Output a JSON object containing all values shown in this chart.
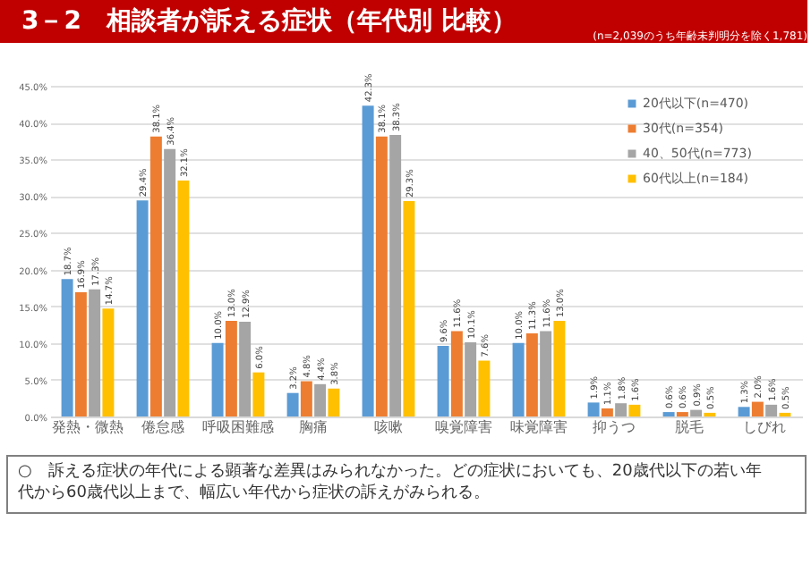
{
  "chart_data": {
    "type": "bar",
    "title": "3－2　相談者が訴える症状（年代別 比較）",
    "subtitle": "(n=2,039のうち年齢未判明分を除く1,781)",
    "categories": [
      "発熱・微熱",
      "倦怠感",
      "呼吸困難感",
      "胸痛",
      "咳嗽",
      "嗅覚障害",
      "味覚障害",
      "抑うつ",
      "脱毛",
      "しびれ"
    ],
    "series": [
      {
        "name": "20代以下(n=470)",
        "color": "#5b9bd5",
        "values": [
          18.7,
          29.4,
          10.0,
          3.2,
          42.3,
          9.6,
          10.0,
          1.9,
          0.6,
          1.3
        ],
        "value_labels": [
          "18.7%",
          "29.4%",
          "10.0%",
          "3.2%",
          "42.3%",
          "9.6%",
          "10.0%",
          "1.9%",
          "0.6%",
          "1.3%"
        ]
      },
      {
        "name": "30代(n=354)",
        "color": "#ed7d31",
        "values": [
          16.9,
          38.1,
          13.0,
          4.8,
          38.1,
          11.6,
          11.3,
          1.1,
          0.6,
          2.0
        ],
        "value_labels": [
          "16.9%",
          "38.1%",
          "13.0%",
          "4.8%",
          "38.1%",
          "11.6%",
          "11.3%",
          "1.1%",
          "0.6%",
          "2.0%"
        ]
      },
      {
        "name": "40、50代(n=773)",
        "color": "#a5a5a5",
        "values": [
          17.3,
          36.4,
          12.9,
          4.4,
          38.3,
          10.1,
          11.6,
          1.8,
          0.9,
          1.6
        ],
        "value_labels": [
          "17.3%",
          "36.4%",
          "12.9%",
          "4.4%",
          "38.3%",
          "10.1%",
          "11.6%",
          "1.8%",
          "0.9%",
          "1.6%"
        ]
      },
      {
        "name": "60代以上(n=184)",
        "color": "#ffc000",
        "values": [
          14.7,
          32.1,
          6.0,
          3.8,
          29.3,
          7.6,
          13.0,
          1.6,
          0.5,
          0.5
        ],
        "value_labels": [
          "14.7%",
          "32.1%",
          "6.0%",
          "3.8%",
          "29.3%",
          "7.6%",
          "13.0%",
          "1.6%",
          "0.5%",
          "0.5%"
        ]
      }
    ],
    "ylim": [
      0,
      45
    ],
    "yticks": [
      {
        "value": 0,
        "label": "0.0%"
      },
      {
        "value": 5,
        "label": "5.0%"
      },
      {
        "value": 10,
        "label": "10.0%"
      },
      {
        "value": 15,
        "label": "15.0%"
      },
      {
        "value": 20,
        "label": "20.0%"
      },
      {
        "value": 25,
        "label": "25.0%"
      },
      {
        "value": 30,
        "label": "30.0%"
      },
      {
        "value": 35,
        "label": "35.0%"
      },
      {
        "value": 40,
        "label": "40.0%"
      },
      {
        "value": 45,
        "label": "45.0%"
      }
    ],
    "grid": "y",
    "legend": "top right",
    "annotations": [
      "○　訴える症状の年代による顕著な差異はみられなかった。どの症状においても、20歳代以下の若い年代から60歳代以上まで、幅広い年代から症状の訴えがみられる。"
    ]
  }
}
